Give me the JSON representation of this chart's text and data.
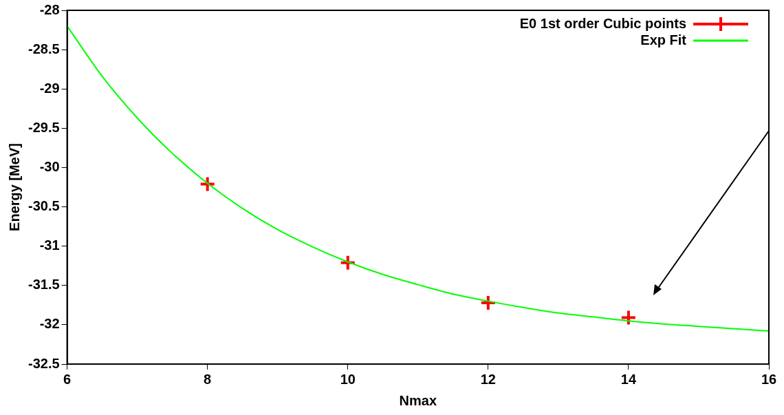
{
  "chart_data": {
    "type": "scatter",
    "xlabel": "Nmax",
    "ylabel": "Energy [MeV]",
    "xlim": [
      6,
      16
    ],
    "xticks": [
      6,
      8,
      10,
      12,
      14,
      16
    ],
    "ylim": [
      -32.5,
      -28
    ],
    "yticks": [
      -32.5,
      -32,
      -31.5,
      -31,
      -30.5,
      -30,
      -29.5,
      -29,
      -28.5,
      -28
    ],
    "grid": false,
    "legend": "top right",
    "series": [
      {
        "name": "E0 1st order Cubic points",
        "marker": "cross",
        "color": "#ff0000",
        "x": [
          8,
          10,
          12,
          14
        ],
        "values": [
          -30.21,
          -31.21,
          -31.72,
          -31.91
        ]
      },
      {
        "name": "Exp Fit",
        "type": "line",
        "marker": "none",
        "color": "#00ff00",
        "x": [
          6,
          6.5,
          7,
          7.5,
          8,
          8.5,
          9,
          9.5,
          10,
          10.5,
          11,
          11.5,
          12,
          12.5,
          13,
          13.5,
          14,
          14.5,
          15,
          15.5,
          16
        ],
        "values": [
          -28.2,
          -28.84,
          -29.37,
          -29.82,
          -30.2,
          -30.52,
          -30.79,
          -31.01,
          -31.2,
          -31.36,
          -31.49,
          -31.61,
          -31.7,
          -31.78,
          -31.85,
          -31.9,
          -31.95,
          -31.99,
          -32.02,
          -32.05,
          -32.08
        ]
      }
    ]
  }
}
